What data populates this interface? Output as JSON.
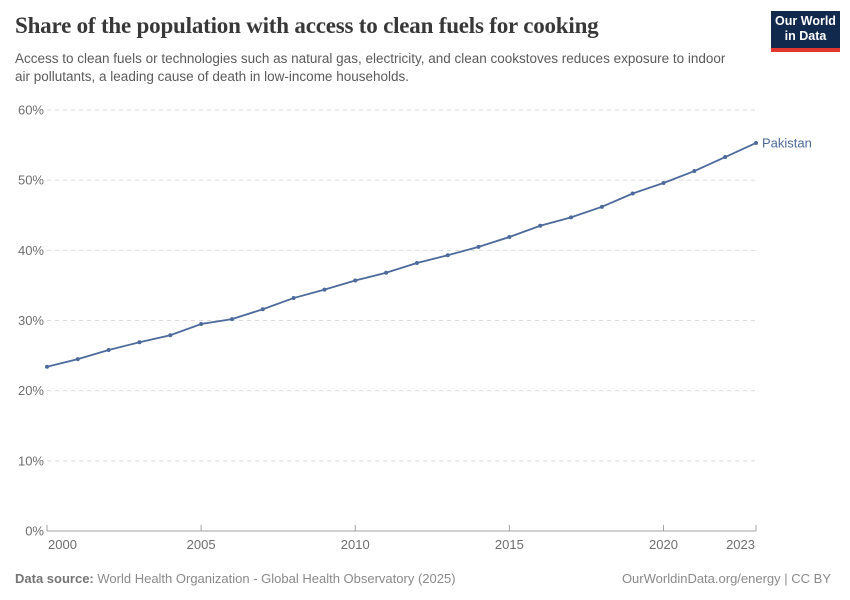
{
  "logo": {
    "line1": "Our World",
    "line2": "in Data",
    "background": "#12294e",
    "stripe": "#e0362e"
  },
  "chart_data": {
    "type": "line",
    "title": "Share of the population with access to clean fuels for cooking",
    "subtitle": "Access to clean fuels or technologies such as natural gas, electricity, and clean cookstoves reduces exposure to indoor air pollutants, a leading cause of death in low-income households.",
    "series": [
      {
        "name": "Pakistan",
        "color": "#4c6a9c",
        "x": [
          2000,
          2001,
          2002,
          2003,
          2004,
          2005,
          2006,
          2007,
          2008,
          2009,
          2010,
          2011,
          2012,
          2013,
          2014,
          2015,
          2016,
          2017,
          2018,
          2019,
          2020,
          2021,
          2022,
          2023
        ],
        "values": [
          23.4,
          24.5,
          25.8,
          26.9,
          27.9,
          29.5,
          30.2,
          31.6,
          33.2,
          34.4,
          35.7,
          36.8,
          38.2,
          39.3,
          40.5,
          41.9,
          43.5,
          44.7,
          46.2,
          48.1,
          49.6,
          51.3,
          53.3,
          55.3
        ]
      }
    ],
    "xlabel": "",
    "ylabel": "",
    "xlim": [
      2000,
      2023
    ],
    "ylim": [
      0,
      60
    ],
    "x_ticks": [
      2000,
      2005,
      2010,
      2015,
      2020,
      2023
    ],
    "y_ticks": [
      0,
      10,
      20,
      30,
      40,
      50,
      60
    ],
    "y_tick_suffix": "%",
    "grid": "horizontal-dashed",
    "legend": "end-of-line-label"
  },
  "footer": {
    "source_label": "Data source:",
    "source_text": "World Health Organization - Global Health Observatory (2025)",
    "credit": "OurWorldinData.org/energy | CC BY"
  }
}
